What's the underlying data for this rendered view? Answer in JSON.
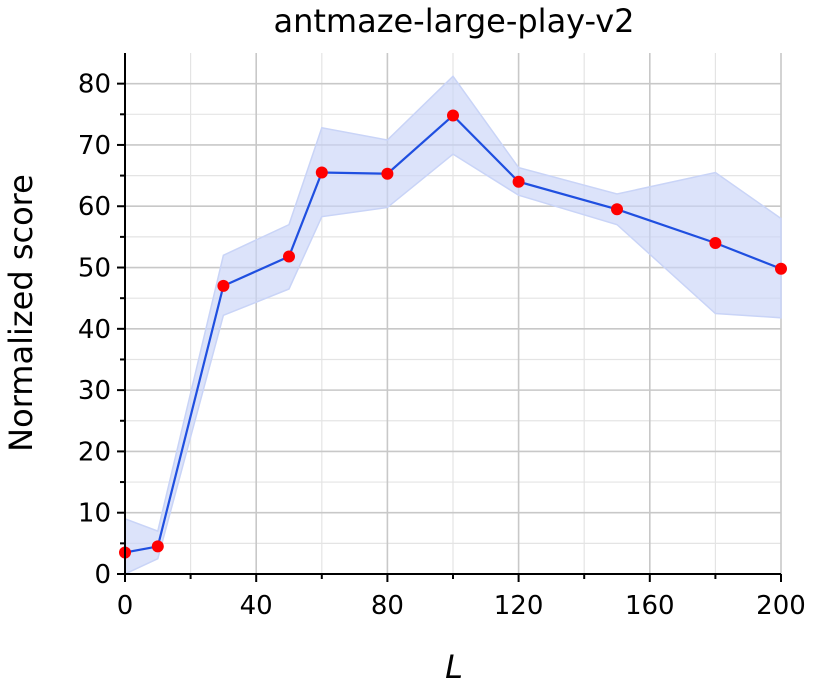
{
  "chart_data": {
    "type": "line",
    "title": "antmaze-large-play-v2",
    "xlabel": "L",
    "ylabel": "Normalized score",
    "xlim": [
      0,
      200
    ],
    "ylim": [
      0,
      85
    ],
    "xticks": [
      0,
      40,
      80,
      120,
      160,
      200
    ],
    "yticks": [
      0,
      10,
      20,
      30,
      40,
      50,
      60,
      70,
      80
    ],
    "grid": true,
    "series": [
      {
        "x": [
          0,
          10,
          30,
          50,
          60,
          80,
          100,
          120,
          150,
          180,
          200
        ],
        "y": [
          3.5,
          4.5,
          47.0,
          51.8,
          65.5,
          65.3,
          74.8,
          64.0,
          59.5,
          54.0,
          49.8
        ],
        "lower": [
          0.0,
          2.5,
          42.2,
          46.5,
          58.3,
          59.8,
          68.5,
          61.8,
          57.0,
          42.5,
          41.8
        ],
        "upper": [
          9.0,
          7.0,
          52.0,
          57.0,
          72.8,
          70.8,
          81.2,
          66.3,
          62.0,
          65.5,
          58.0
        ],
        "line_color": "#1f4fe0",
        "marker_color": "#ff0000",
        "band_color": "#c9d4f7"
      }
    ]
  }
}
